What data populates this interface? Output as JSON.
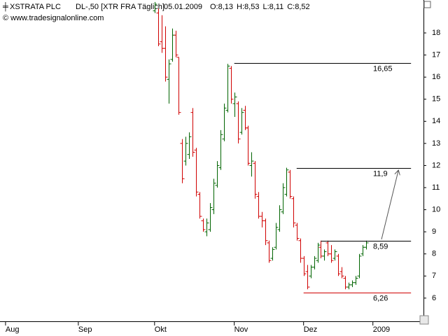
{
  "chart_data": {
    "type": "ohlc",
    "title": "XSTRATA PLC",
    "subtitle": "DL-,50 [XTR FRA  Täglich]",
    "date": "05.01.2009",
    "quote": [
      {
        "text": "O:8,13",
        "color": "#00a000"
      },
      {
        "text": "H:8,53",
        "color": "#000000"
      },
      {
        "text": "L:8,11",
        "color": "#000000"
      },
      {
        "text": "C:8,52",
        "color": "#00a000"
      }
    ],
    "source": "© www.tradesignalonline.com",
    "up_color": "#006400",
    "down_color": "#d00000",
    "x": [
      43,
      44,
      45,
      46,
      47,
      48,
      49,
      50,
      51,
      52,
      53,
      54,
      55,
      56,
      57,
      58,
      59,
      60,
      61,
      62,
      63,
      64,
      65,
      66,
      67,
      68,
      69,
      70,
      71,
      72,
      73,
      74,
      75,
      76,
      77,
      78,
      79,
      80,
      81,
      82,
      83,
      84,
      85,
      86,
      87,
      88,
      89,
      90,
      91,
      92,
      93,
      94,
      95,
      96,
      97,
      98,
      99,
      100,
      101,
      102,
      103,
      104
    ],
    "high": [
      19.4,
      19.1,
      18.8,
      18.3,
      16.8,
      18.2,
      18.1,
      16.9,
      13.2,
      13.3,
      13.5,
      14.6,
      12.8,
      10.8,
      9.6,
      9.6,
      10.3,
      11.4,
      12.2,
      13.6,
      14.8,
      16.6,
      16.5,
      15.3,
      14.9,
      14.6,
      14.7,
      13.8,
      12.6,
      12.2,
      10.8,
      9.9,
      9.6,
      8.6,
      8.3,
      9.4,
      10.2,
      11.2,
      11.9,
      11.8,
      10.6,
      9.4,
      8.7,
      7.9,
      7.5,
      7.5,
      7.9,
      8.5,
      8.6,
      8.2,
      8.6,
      8.4,
      8.2,
      8.0,
      7.4,
      7.0,
      6.7,
      6.8,
      7.0,
      8.0,
      8.4,
      8.6
    ],
    "low": [
      18.9,
      17.4,
      17.1,
      15.8,
      14.8,
      16.7,
      16.9,
      14.3,
      11.2,
      12.0,
      12.3,
      12.4,
      10.6,
      9.6,
      9.0,
      8.8,
      9.0,
      9.8,
      11.0,
      11.8,
      13.1,
      14.4,
      14.8,
      14.2,
      13.0,
      13.4,
      13.6,
      12.0,
      11.5,
      10.5,
      9.6,
      9.2,
      8.4,
      7.6,
      7.7,
      8.2,
      9.0,
      9.8,
      10.6,
      10.5,
      9.2,
      8.6,
      7.6,
      7.0,
      6.4,
      6.9,
      7.3,
      7.6,
      7.8,
      7.7,
      7.9,
      7.6,
      7.7,
      7.0,
      6.9,
      6.4,
      6.4,
      6.5,
      6.6,
      6.9,
      7.9,
      8.2
    ],
    "open": [
      19.0,
      18.9,
      17.6,
      17.3,
      15.9,
      16.8,
      17.9,
      16.9,
      13.0,
      12.2,
      12.5,
      14.4,
      12.7,
      10.7,
      9.5,
      9.0,
      9.1,
      10.0,
      11.1,
      11.9,
      13.2,
      14.5,
      16.4,
      14.8,
      14.8,
      13.5,
      14.5,
      13.7,
      12.0,
      12.1,
      10.6,
      9.7,
      9.5,
      8.5,
      7.8,
      8.3,
      9.1,
      9.9,
      10.7,
      11.7,
      10.5,
      9.3,
      8.6,
      7.8,
      7.2,
      7.0,
      7.4,
      7.7,
      8.3,
      7.9,
      8.5,
      8.0,
      7.8,
      7.9,
      7.2,
      6.9,
      6.5,
      6.6,
      6.7,
      7.0,
      8.0,
      8.3
    ],
    "close": [
      19.3,
      17.5,
      17.3,
      16.0,
      16.6,
      17.9,
      17.0,
      14.4,
      11.4,
      13.0,
      13.3,
      12.6,
      10.8,
      9.7,
      9.1,
      9.4,
      10.1,
      11.2,
      12.0,
      13.4,
      14.6,
      16.5,
      15.0,
      15.1,
      13.2,
      14.4,
      13.7,
      12.1,
      12.2,
      10.7,
      9.7,
      9.5,
      8.6,
      7.7,
      8.2,
      9.2,
      10.0,
      11.0,
      11.8,
      10.6,
      9.4,
      8.7,
      7.8,
      7.1,
      6.5,
      7.4,
      7.8,
      8.4,
      7.9,
      8.1,
      8.0,
      7.7,
      8.1,
      7.1,
      7.0,
      6.5,
      6.6,
      6.7,
      6.9,
      7.9,
      8.3,
      8.5
    ],
    "levels": [
      {
        "value": 16.65,
        "label": "16,65",
        "start": 66,
        "end": 117,
        "color": "#000000"
      },
      {
        "value": 11.9,
        "label": "11,9",
        "start": 84,
        "end": 117,
        "color": "#000000"
      },
      {
        "value": 8.59,
        "label": "8,59",
        "start": 91,
        "end": 117,
        "color": "#000000"
      },
      {
        "value": 6.26,
        "label": "6,26",
        "start": 86,
        "end": 117,
        "color": "#d00000"
      }
    ],
    "xlim": [
      -1.6,
      120.6
    ],
    "xticks": [
      {
        "value": 0,
        "label": "Aug"
      },
      {
        "value": 21,
        "label": "Sep"
      },
      {
        "value": 43,
        "label": "Okt"
      },
      {
        "value": 66,
        "label": "Nov"
      },
      {
        "value": 86,
        "label": "Dez"
      },
      {
        "value": 106,
        "label": "2009"
      }
    ],
    "ylim": [
      4.95,
      19.49
    ],
    "yticks": [
      6,
      7,
      8,
      9,
      10,
      11,
      12,
      13,
      14,
      15,
      16,
      17,
      18
    ]
  }
}
